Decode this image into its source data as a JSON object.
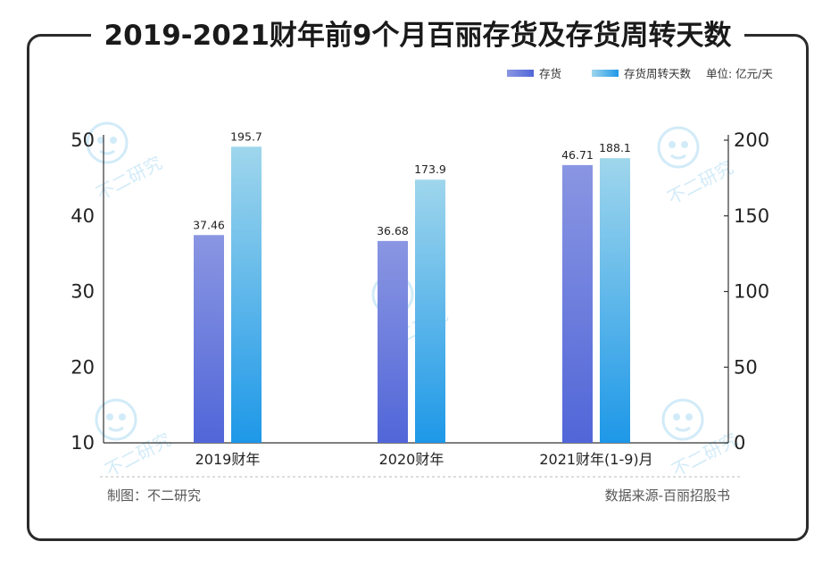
{
  "title": "2019-2021财年前9个月百丽存货及存货周转天数",
  "legend": {
    "inventory": "存货",
    "turnover": "存货周转天数",
    "unit": "单位: 亿元/天"
  },
  "footer": {
    "left": "制图：不二研究",
    "right": "数据来源-百丽招股书"
  },
  "watermark": "不二研究",
  "colors": {
    "inventory_top": "#8a96e2",
    "inventory_bottom": "#5166d8",
    "turnover_top": "#9fd6ec",
    "turnover_bottom": "#1e98e8",
    "axis": "#333333",
    "frame": "#2b2b2b"
  },
  "chart_data": {
    "type": "bar",
    "categories": [
      "2019财年",
      "2020财年",
      "2021财年(1-9)月"
    ],
    "series": [
      {
        "name": "存货",
        "axis": "left",
        "values": [
          37.46,
          36.68,
          46.71
        ],
        "labels": [
          "37.46",
          "36.68",
          "46.71"
        ]
      },
      {
        "name": "存货周转天数",
        "axis": "right",
        "values": [
          195.7,
          173.9,
          188.1
        ],
        "labels": [
          "195.7",
          "173.9",
          "188.1"
        ]
      }
    ],
    "y_left": {
      "min": 10,
      "max": 50,
      "ticks": [
        "10",
        "20",
        "30",
        "40",
        "50"
      ]
    },
    "y_right": {
      "min": 0,
      "max": 200,
      "ticks": [
        "0",
        "50",
        "100",
        "150",
        "200"
      ]
    },
    "grid": false,
    "legend_position": "top-right"
  }
}
